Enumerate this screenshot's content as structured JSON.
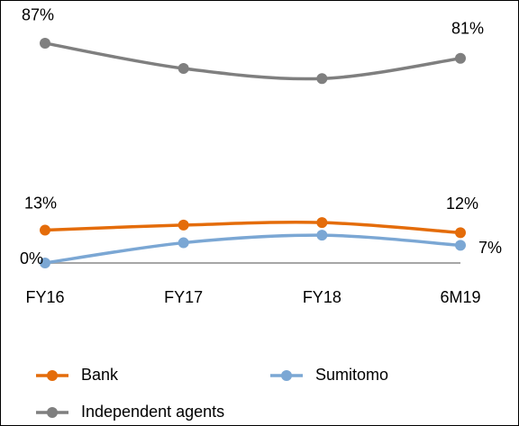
{
  "chart_data": {
    "type": "line",
    "categories": [
      "FY16",
      "FY17",
      "FY18",
      "6M19"
    ],
    "ylim": [
      0,
      100
    ],
    "series": [
      {
        "name": "Bank",
        "color": "#e46c0a",
        "values": [
          13,
          15,
          16,
          12
        ],
        "value_labels": [
          "13%",
          null,
          null,
          "12%"
        ]
      },
      {
        "name": "Sumitomo",
        "color": "#7ba7d4",
        "values": [
          0,
          8,
          11,
          7
        ],
        "value_labels": [
          "0%",
          null,
          null,
          "7%"
        ]
      },
      {
        "name": "Independent agents",
        "color": "#7f7f7f",
        "values": [
          87,
          77,
          73,
          81
        ],
        "value_labels": [
          "87%",
          null,
          null,
          "81%"
        ]
      }
    ],
    "legend": "bottom"
  }
}
